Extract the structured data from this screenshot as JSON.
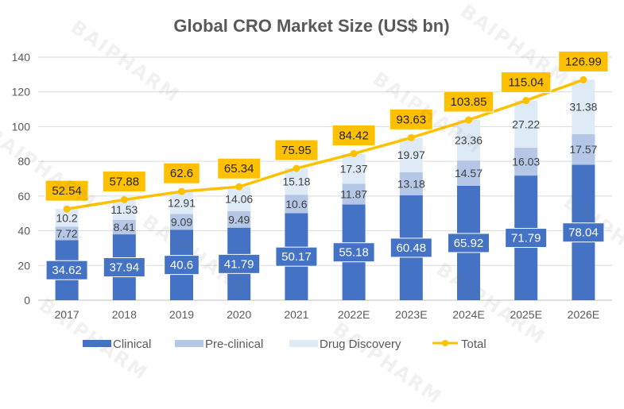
{
  "watermark": "BAIPHARM",
  "chart_data": {
    "type": "bar",
    "stacked": true,
    "title": "Global CRO Market Size (US$ bn)",
    "xlabel": "",
    "ylabel": "",
    "ylim": [
      0,
      140
    ],
    "yticks": [
      0,
      20,
      40,
      60,
      80,
      100,
      120,
      140
    ],
    "grid": true,
    "legend_position": "bottom",
    "categories": [
      "2017",
      "2018",
      "2019",
      "2020",
      "2021",
      "2022E",
      "2023E",
      "2024E",
      "2025E",
      "2026E"
    ],
    "series": [
      {
        "name": "Clinical",
        "type": "bar",
        "color": "#4472C4",
        "values": [
          34.62,
          37.94,
          40.6,
          41.79,
          50.17,
          55.18,
          60.48,
          65.92,
          71.79,
          78.04
        ]
      },
      {
        "name": "Pre-clinical",
        "type": "bar",
        "color": "#B4C7E7",
        "values": [
          7.72,
          8.41,
          9.09,
          9.49,
          10.6,
          11.87,
          13.18,
          14.57,
          16.03,
          17.57
        ]
      },
      {
        "name": "Drug Discovery",
        "type": "bar",
        "color": "#DEEBF7",
        "values": [
          10.2,
          11.53,
          12.91,
          14.06,
          15.18,
          17.37,
          19.97,
          23.36,
          27.22,
          31.38
        ]
      },
      {
        "name": "Total",
        "type": "line",
        "color": "#FFC000",
        "values": [
          52.54,
          57.88,
          62.6,
          65.34,
          75.95,
          84.42,
          93.63,
          103.85,
          115.04,
          126.99
        ]
      }
    ],
    "label_colors": {
      "total_label_bg": "#FFC000",
      "clinical_label_bg": "#4472C4",
      "axis_text": "#595959",
      "title_text": "#595959"
    }
  }
}
